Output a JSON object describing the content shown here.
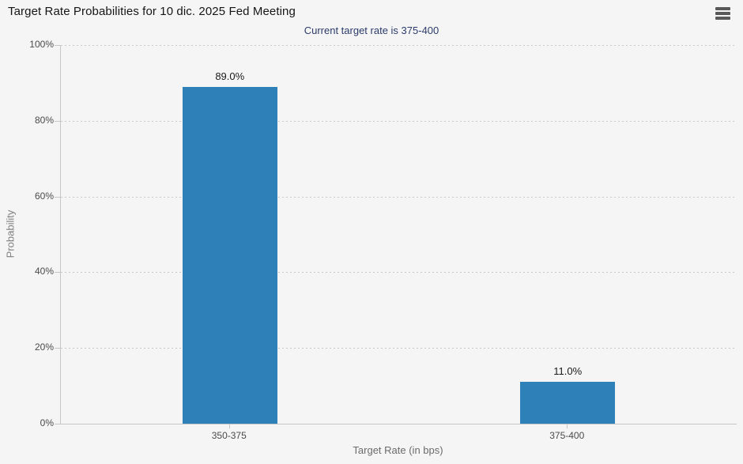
{
  "menu": {
    "icon": "hamburger-icon"
  },
  "chart_data": {
    "type": "bar",
    "title": "Target Rate Probabilities for 10 dic. 2025 Fed Meeting",
    "subtitle": "Current target rate is 375-400",
    "categories": [
      "350-375",
      "375-400"
    ],
    "series": [
      {
        "name": "Probability",
        "values": [
          89.0,
          11.0
        ]
      }
    ],
    "value_labels": [
      "89.0%",
      "11.0%"
    ],
    "xlabel": "Target Rate (in bps)",
    "ylabel": "Probability",
    "ylim": [
      0,
      100
    ],
    "ytick_values": [
      0,
      20,
      40,
      60,
      80,
      100
    ],
    "ytick_labels": [
      "0%",
      "20%",
      "40%",
      "60%",
      "80%",
      "100%"
    ],
    "grid": {
      "horizontal": true,
      "style": "dotted"
    },
    "legend": "none",
    "watermark_letter": "Q",
    "colors": {
      "bar": "#2E80B9",
      "subtitle_text": "#2B3C6B",
      "axis_text": "#4A4A4A",
      "axis_title_text": "#7F7F7F",
      "background": "#F5F5F5",
      "grid_line": "#C9C9C9",
      "watermark_q": "#D8D8D8",
      "watermark_flash": "#93CEE9"
    }
  }
}
